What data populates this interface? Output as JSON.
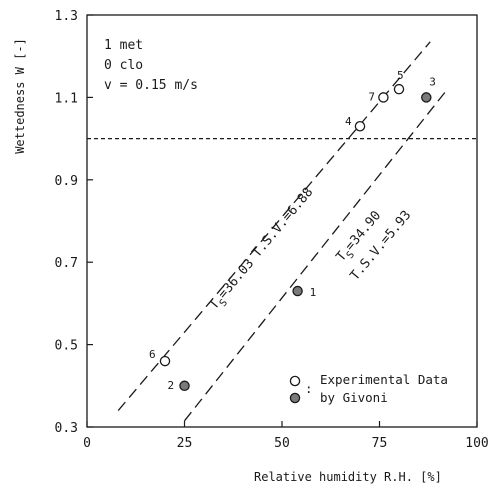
{
  "chart_data": {
    "type": "scatter",
    "xlabel": "Relative humidity  R.H. [%]",
    "ylabel": "Wettedness  W [-]",
    "xlim": [
      0,
      100
    ],
    "ylim": [
      0.3,
      1.3
    ],
    "xticks": [
      "0",
      "25",
      "50",
      "75",
      "100"
    ],
    "yticks": [
      "0.3",
      "0.5",
      "0.7",
      "0.9",
      "1.1",
      "1.3"
    ],
    "conditions": [
      "1 met",
      "0 clo",
      "v = 0.15 m/s"
    ],
    "reference_line": {
      "y": 1.0,
      "style": "dashed"
    },
    "series": [
      {
        "name": "Experimental Data",
        "marker": "open-circle",
        "points": [
          {
            "label": "6",
            "x": 20,
            "y": 0.46
          },
          {
            "label": "4",
            "x": 70,
            "y": 1.03
          },
          {
            "label": "7",
            "x": 76,
            "y": 1.1
          },
          {
            "label": "5",
            "x": 80,
            "y": 1.12
          }
        ]
      },
      {
        "name": "by Givoni",
        "marker": "filled-circle",
        "points": [
          {
            "label": "2",
            "x": 25,
            "y": 0.4
          },
          {
            "label": "1",
            "x": 54,
            "y": 0.63
          },
          {
            "label": "3",
            "x": 87,
            "y": 1.1
          }
        ]
      }
    ],
    "fit_lines": [
      {
        "name": "upper",
        "annotation_top": "T.S.V.=6.88",
        "annotation_bottom": "T_S=36.03",
        "x": [
          8,
          88
        ],
        "y": [
          0.34,
          1.235
        ]
      },
      {
        "name": "lower",
        "annotation_top": "T_S=34.90",
        "annotation_bottom": "T.S.V.=5.93",
        "x": [
          25,
          92
        ],
        "y": [
          0.315,
          1.115
        ]
      }
    ],
    "legend": {
      "position": "bottom-right",
      "separator": ":",
      "line1": "Experimental Data",
      "line2": "by Givoni"
    },
    "grid": false
  }
}
